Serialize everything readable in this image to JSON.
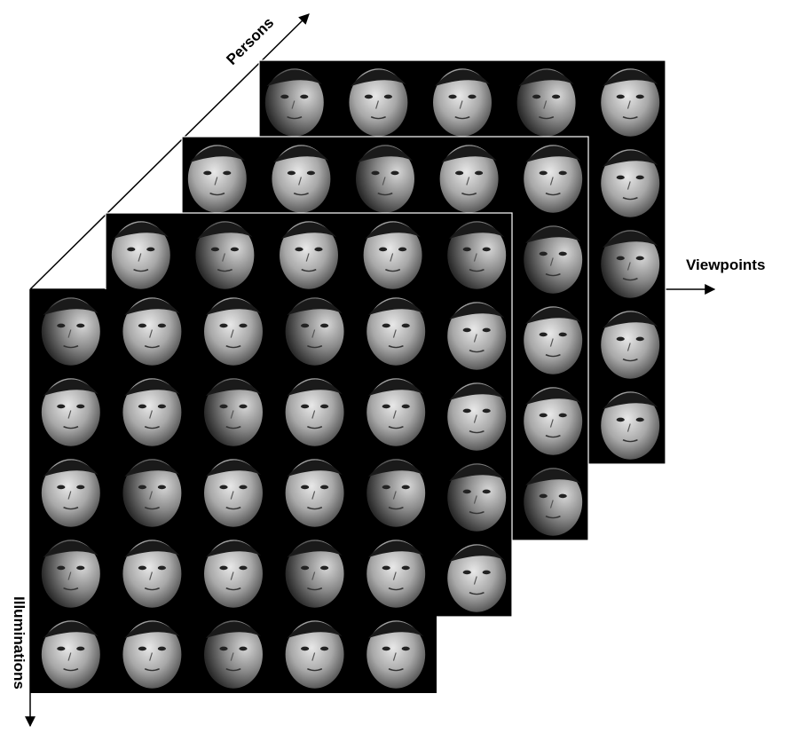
{
  "axes": {
    "persons": "Persons",
    "viewpoints": "Viewpoints",
    "illuminations": "Illuminations"
  },
  "tensor": {
    "layers": 4,
    "rows": 5,
    "cols": 5,
    "front_layer_viewpoint_shift": [
      0.62,
      0.68,
      0.72,
      0.76,
      0.82
    ],
    "back_layer_viewpoint_shift": [
      0.2,
      0.3,
      0.45,
      0.6,
      0.9
    ]
  },
  "colors": {
    "background": "#000000",
    "axis": "#000000",
    "layer_border": "#ffffff"
  }
}
